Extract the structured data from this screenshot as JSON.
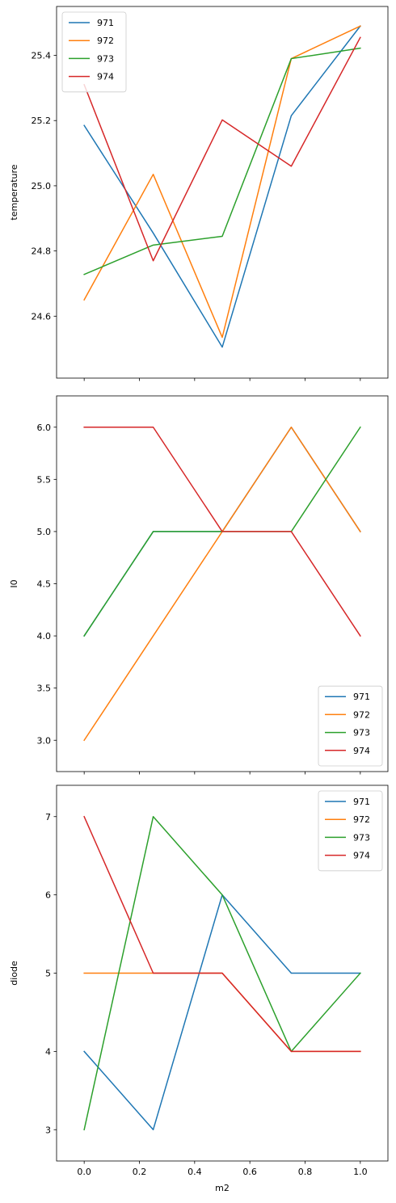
{
  "chart_data": [
    {
      "type": "line",
      "xlabel": "",
      "ylabel": "temperature",
      "x": [
        0.0,
        0.25,
        0.5,
        0.75,
        1.0
      ],
      "xlim": [
        -0.1,
        1.1
      ],
      "ylim": [
        24.41,
        25.55
      ],
      "yticks": [
        24.6,
        24.8,
        25.0,
        25.2,
        25.4
      ],
      "ytick_labels": [
        "24.6",
        "24.8",
        "25.0",
        "25.2",
        "25.4"
      ],
      "xtick_labels_visible": false,
      "legend": "top-left",
      "series": [
        {
          "name": "971",
          "color": "#1f77b4",
          "values": [
            25.185,
            24.855,
            24.505,
            25.215,
            25.49
          ]
        },
        {
          "name": "972",
          "color": "#ff7f0e",
          "values": [
            24.65,
            25.035,
            24.535,
            25.39,
            25.49
          ]
        },
        {
          "name": "973",
          "color": "#2ca02c",
          "values": [
            24.728,
            24.818,
            24.845,
            25.39,
            25.422
          ]
        },
        {
          "name": "974",
          "color": "#d62728",
          "values": [
            25.31,
            24.77,
            25.202,
            25.06,
            25.455
          ]
        }
      ]
    },
    {
      "type": "line",
      "xlabel": "",
      "ylabel": "I0",
      "x": [
        0.0,
        0.25,
        0.5,
        0.75,
        1.0
      ],
      "xlim": [
        -0.1,
        1.1
      ],
      "ylim": [
        2.7,
        6.3
      ],
      "yticks": [
        3.0,
        3.5,
        4.0,
        4.5,
        5.0,
        5.5,
        6.0
      ],
      "ytick_labels": [
        "3.0",
        "3.5",
        "4.0",
        "4.5",
        "5.0",
        "5.5",
        "6.0"
      ],
      "xtick_labels_visible": false,
      "legend": "bottom-right",
      "series": [
        {
          "name": "971",
          "color": "#1f77b4",
          "values": [
            4,
            5,
            5,
            6,
            5
          ]
        },
        {
          "name": "972",
          "color": "#ff7f0e",
          "values": [
            3,
            4,
            5,
            6,
            5
          ]
        },
        {
          "name": "973",
          "color": "#2ca02c",
          "values": [
            4,
            5,
            5,
            5,
            6
          ]
        },
        {
          "name": "974",
          "color": "#d62728",
          "values": [
            6,
            6,
            5,
            5,
            4
          ]
        }
      ]
    },
    {
      "type": "line",
      "xlabel": "m2",
      "ylabel": "diode",
      "x": [
        0.0,
        0.25,
        0.5,
        0.75,
        1.0
      ],
      "xlim": [
        -0.1,
        1.1
      ],
      "ylim": [
        2.6,
        7.4
      ],
      "yticks": [
        3,
        4,
        5,
        6,
        7
      ],
      "ytick_labels": [
        "3",
        "4",
        "5",
        "6",
        "7"
      ],
      "xticks": [
        0.0,
        0.2,
        0.4,
        0.6,
        0.8,
        1.0
      ],
      "xtick_labels": [
        "0.0",
        "0.2",
        "0.4",
        "0.6",
        "0.8",
        "1.0"
      ],
      "xtick_labels_visible": true,
      "legend": "top-right",
      "series": [
        {
          "name": "971",
          "color": "#1f77b4",
          "values": [
            4,
            3,
            6,
            5,
            5
          ]
        },
        {
          "name": "972",
          "color": "#ff7f0e",
          "values": [
            5,
            5,
            5,
            4,
            4
          ]
        },
        {
          "name": "973",
          "color": "#2ca02c",
          "values": [
            3,
            7,
            6,
            4,
            5
          ]
        },
        {
          "name": "974",
          "color": "#d62728",
          "values": [
            7,
            5,
            5,
            4,
            4
          ]
        }
      ]
    }
  ]
}
